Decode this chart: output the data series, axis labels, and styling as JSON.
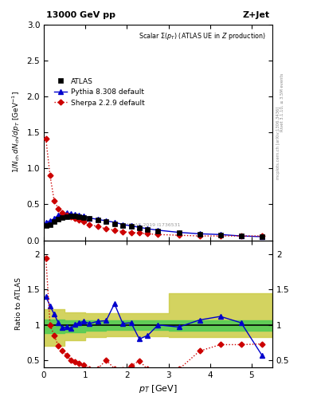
{
  "title_left": "13000 GeV pp",
  "title_right": "Z+Jet",
  "main_title": "Scalar Σ(p_T) (ATLAS UE in Z production)",
  "ylabel_main": "1/N_{ch} dN_{ch}/dp_T [GeV⁻¹]",
  "ylabel_ratio": "Ratio to ATLAS",
  "xlabel": "p_T [GeV]",
  "right_label1": "Rivet 3.1.10, ≥ 3.5M events",
  "right_label2": "mcplots.cern.ch [arXiv:1306.3436]",
  "watermark": "ATLAS 2019 I1736531",
  "atlas_x": [
    0.05,
    0.15,
    0.25,
    0.35,
    0.45,
    0.55,
    0.65,
    0.75,
    0.85,
    0.95,
    1.1,
    1.3,
    1.5,
    1.7,
    1.9,
    2.1,
    2.3,
    2.5,
    2.75,
    3.25,
    3.75,
    4.25,
    4.75,
    5.25
  ],
  "atlas_y": [
    0.2,
    0.22,
    0.26,
    0.29,
    0.32,
    0.33,
    0.34,
    0.34,
    0.33,
    0.32,
    0.3,
    0.28,
    0.26,
    0.23,
    0.21,
    0.19,
    0.17,
    0.15,
    0.13,
    0.1,
    0.08,
    0.07,
    0.06,
    0.05
  ],
  "pythia_x": [
    0.05,
    0.15,
    0.25,
    0.35,
    0.45,
    0.55,
    0.65,
    0.75,
    0.85,
    0.95,
    1.1,
    1.3,
    1.5,
    1.7,
    1.9,
    2.1,
    2.3,
    2.5,
    2.75,
    3.25,
    3.75,
    4.25,
    4.75,
    5.25
  ],
  "pythia_y": [
    0.25,
    0.27,
    0.3,
    0.35,
    0.37,
    0.38,
    0.37,
    0.36,
    0.35,
    0.34,
    0.31,
    0.29,
    0.27,
    0.25,
    0.22,
    0.2,
    0.18,
    0.16,
    0.14,
    0.11,
    0.09,
    0.08,
    0.06,
    0.05
  ],
  "sherpa_x": [
    0.05,
    0.15,
    0.25,
    0.35,
    0.45,
    0.55,
    0.65,
    0.75,
    0.85,
    0.95,
    1.1,
    1.3,
    1.5,
    1.7,
    1.9,
    2.1,
    2.3,
    2.5,
    2.75,
    3.25,
    3.75,
    4.25,
    4.75,
    5.25
  ],
  "sherpa_y": [
    1.41,
    0.9,
    0.55,
    0.44,
    0.38,
    0.35,
    0.33,
    0.31,
    0.28,
    0.26,
    0.22,
    0.19,
    0.16,
    0.14,
    0.12,
    0.11,
    0.1,
    0.09,
    0.08,
    0.07,
    0.06,
    0.06,
    0.06,
    0.06
  ],
  "pythia_ratio_x": [
    0.05,
    0.15,
    0.25,
    0.35,
    0.45,
    0.55,
    0.65,
    0.75,
    0.85,
    0.95,
    1.1,
    1.3,
    1.5,
    1.7,
    1.9,
    2.1,
    2.3,
    2.5,
    2.75,
    3.25,
    3.75,
    4.25,
    4.75,
    5.25
  ],
  "pythia_ratio_y": [
    1.4,
    1.27,
    1.15,
    1.03,
    0.96,
    0.97,
    0.95,
    1.01,
    1.03,
    1.05,
    1.02,
    1.05,
    1.06,
    1.3,
    1.02,
    1.03,
    0.8,
    0.85,
    1.0,
    0.97,
    1.07,
    1.12,
    1.03,
    0.57
  ],
  "sherpa_ratio_x": [
    0.05,
    0.15,
    0.25,
    0.35,
    0.45,
    0.55,
    0.65,
    0.75,
    0.85,
    0.95,
    1.1,
    1.3,
    1.5,
    1.7,
    1.9,
    2.1,
    2.3,
    2.5,
    2.75,
    3.25,
    3.75,
    4.25,
    4.75,
    5.25
  ],
  "sherpa_ratio_y": [
    1.95,
    1.0,
    0.85,
    0.7,
    0.63,
    0.57,
    0.5,
    0.48,
    0.45,
    0.43,
    0.38,
    0.38,
    0.5,
    0.38,
    0.36,
    0.42,
    0.49,
    0.37,
    0.33,
    0.37,
    0.63,
    0.72,
    0.72,
    0.73
  ],
  "band_x_steps": [
    0.0,
    0.5,
    0.5,
    1.0,
    1.0,
    1.5,
    1.5,
    2.0,
    2.0,
    2.5,
    2.5,
    3.0,
    3.0,
    4.0,
    4.0,
    5.0,
    5.0,
    5.5
  ],
  "band_green_lo_steps": [
    0.88,
    0.88,
    0.9,
    0.9,
    0.92,
    0.92,
    0.93,
    0.93,
    0.93,
    0.93,
    0.93,
    0.93,
    0.92,
    0.92,
    0.92,
    0.92,
    0.92,
    0.92
  ],
  "band_green_hi_steps": [
    1.08,
    1.08,
    1.07,
    1.07,
    1.07,
    1.07,
    1.07,
    1.07,
    1.07,
    1.07,
    1.07,
    1.07,
    1.07,
    1.07,
    1.07,
    1.07,
    1.07,
    1.07
  ],
  "band_yellow_lo_steps": [
    0.7,
    0.7,
    0.78,
    0.78,
    0.83,
    0.83,
    0.84,
    0.84,
    0.84,
    0.84,
    0.84,
    0.84,
    0.83,
    0.83,
    0.83,
    0.83,
    0.83,
    0.83
  ],
  "band_yellow_hi_steps": [
    1.22,
    1.22,
    1.18,
    1.18,
    1.17,
    1.17,
    1.17,
    1.17,
    1.17,
    1.17,
    1.17,
    1.17,
    1.45,
    1.45,
    1.45,
    1.45,
    1.45,
    1.45
  ],
  "main_ylim": [
    0,
    3.0
  ],
  "main_yticks": [
    0,
    0.5,
    1.0,
    1.5,
    2.0,
    2.5,
    3.0
  ],
  "ratio_ylim": [
    0.4,
    2.2
  ],
  "ratio_yticks": [
    0.5,
    1.0,
    1.5,
    2.0
  ],
  "xlim": [
    0.0,
    5.5
  ],
  "xticks": [
    0,
    1,
    2,
    3,
    4,
    5
  ],
  "atlas_color": "#000000",
  "pythia_color": "#0000cc",
  "sherpa_color": "#cc0000",
  "band_green": "#55cc55",
  "band_yellow": "#cccc44"
}
